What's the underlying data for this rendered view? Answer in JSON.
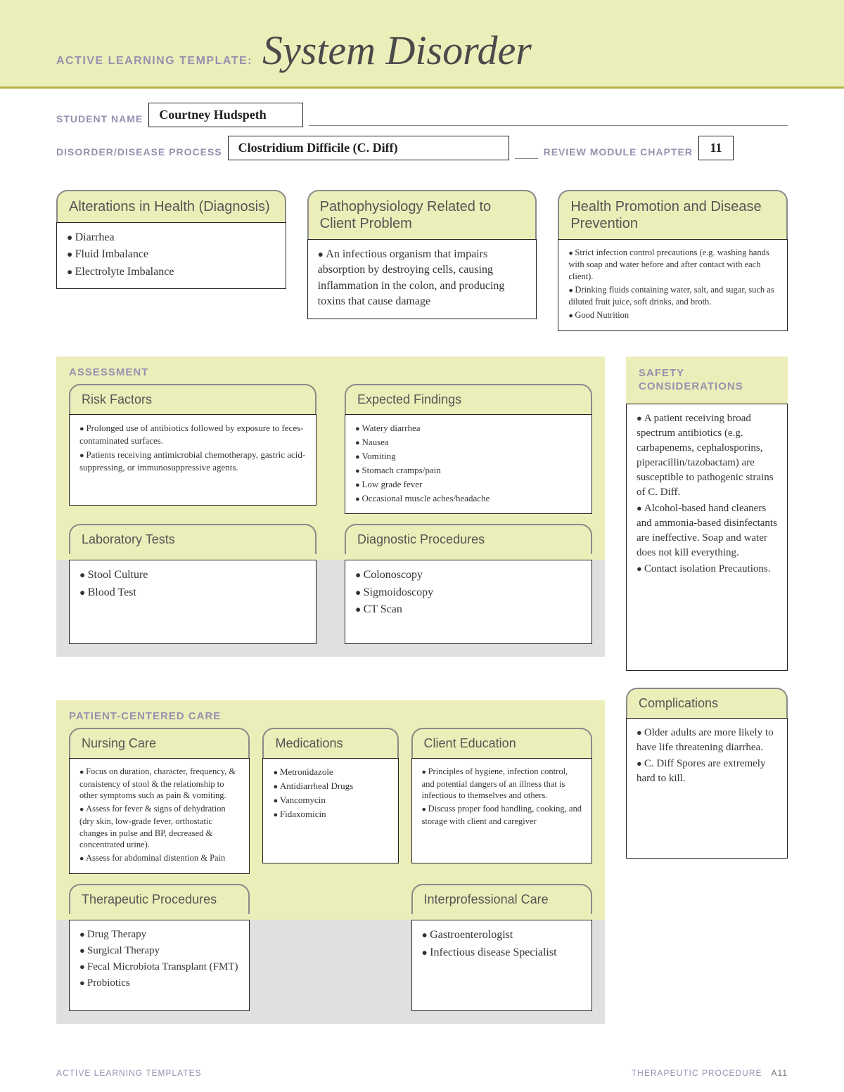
{
  "colors": {
    "banner_bg": "#eceeb9",
    "banner_rule": "#b8b24a",
    "label_text": "#9890b0",
    "tab_border": "#8a8a8a",
    "gray_strip": "#e0e0e0",
    "text": "#333333"
  },
  "header": {
    "prefix": "ACTIVE LEARNING TEMPLATE:",
    "title": "System Disorder"
  },
  "meta": {
    "student_label": "STUDENT NAME",
    "student_value": "Courtney Hudspeth",
    "disorder_label": "DISORDER/DISEASE PROCESS",
    "disorder_value": "Clostridium Difficile (C. Diff)",
    "chapter_label": "REVIEW MODULE CHAPTER",
    "chapter_value": "11"
  },
  "top": {
    "alterations": {
      "title": "Alterations in Health (Diagnosis)",
      "items": [
        "Diarrhea",
        "Fluid Imbalance",
        "Electrolyte Imbalance"
      ]
    },
    "patho": {
      "title": "Pathophysiology Related to Client Problem",
      "items": [
        "An infectious organism that impairs absorption by destroying cells, causing inflammation in the colon, and producing toxins that cause damage"
      ]
    },
    "health_promo": {
      "title": "Health Promotion and Disease Prevention",
      "items": [
        "Strict infection control precautions (e.g. washing hands with soap and water before and after contact with each client).",
        "Drinking fluids containing water, salt, and sugar, such as diluted fruit juice, soft drinks, and broth.",
        "Good Nutrition"
      ]
    }
  },
  "assessment": {
    "label": "ASSESSMENT",
    "risk": {
      "title": "Risk Factors",
      "items": [
        "Prolonged use of antibiotics followed by exposure to feces-contaminated surfaces.",
        "Patients receiving antimicrobial chemotherapy, gastric acid-suppressing, or immunosuppressive agents."
      ]
    },
    "expected": {
      "title": "Expected Findings",
      "items": [
        "Watery diarrhea",
        "Nausea",
        "Vomiting",
        "Stomach cramps/pain",
        "Low grade fever",
        "Occasional muscle aches/headache"
      ]
    },
    "lab": {
      "title": "Laboratory Tests",
      "items": [
        "Stool Culture",
        "Blood Test"
      ]
    },
    "diag": {
      "title": "Diagnostic Procedures",
      "items": [
        "Colonoscopy",
        "Sigmoidoscopy",
        "CT Scan"
      ]
    },
    "safety": {
      "title": "SAFETY CONSIDERATIONS",
      "items": [
        "A patient receiving broad spectrum antibiotics (e.g. carbapenems, cephalosporins, piperacillin/tazobactam) are susceptible to pathogenic strains of C. Diff.",
        "Alcohol-based hand cleaners and ammonia-based disinfectants are ineffective. Soap and water does not kill everything.",
        "Contact isolation Precautions."
      ]
    }
  },
  "care": {
    "label": "PATIENT-CENTERED CARE",
    "nursing": {
      "title": "Nursing Care",
      "items": [
        "Focus on duration, character, frequency, & consistency of stool & the relationship to other symptoms such as pain & vomiting.",
        "Assess for fever & signs of dehydration (dry skin, low-grade fever, orthostatic changes in pulse and BP, decreased & concentrated urine).",
        "Assess for abdominal distention & Pain"
      ]
    },
    "meds": {
      "title": "Medications",
      "items": [
        "Metronidazole",
        "Antidiarrheal Drugs",
        "Vancomycin",
        "Fidaxomicin"
      ]
    },
    "education": {
      "title": "Client Education",
      "items": [
        "Principles of hygiene, infection control, and potential dangers of an illness that is infectious to themselves and others.",
        "Discuss proper food handling, cooking, and storage with client and caregiver"
      ]
    },
    "therapeutic": {
      "title": "Therapeutic Procedures",
      "items": [
        "Drug Therapy",
        "Surgical Therapy",
        "Fecal Microbiota Transplant (FMT)",
        "Probiotics"
      ]
    },
    "interprof": {
      "title": "Interprofessional Care",
      "items": [
        "Gastroenterologist",
        "Infectious disease Specialist"
      ]
    },
    "complications": {
      "title": "Complications",
      "items": [
        "Older adults are more likely to have life threatening diarrhea.",
        "C. Diff Spores are extremely hard to kill."
      ]
    }
  },
  "footer": {
    "left": "ACTIVE LEARNING TEMPLATES",
    "right_label": "THERAPEUTIC PROCEDURE",
    "page": "A11"
  }
}
